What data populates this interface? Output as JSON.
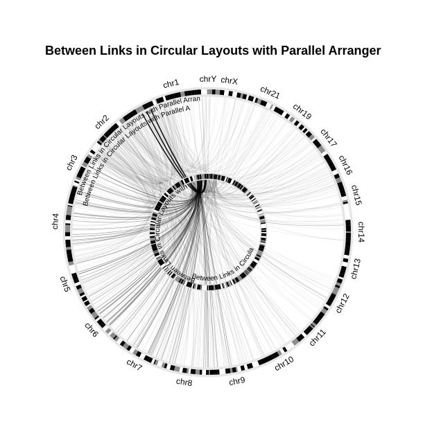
{
  "title": "Between Links in Circular Layouts with Parallel Arranger",
  "chart_data": {
    "type": "circular-links",
    "chromosomes": [
      "chr1",
      "chr2",
      "chr3",
      "chr4",
      "chr5",
      "chr6",
      "chr7",
      "chr8",
      "chr9",
      "chr10",
      "chr11",
      "chr12",
      "chr13",
      "chr14",
      "chr15",
      "chr16",
      "chr17",
      "chr19",
      "chr21",
      "chrX",
      "chrY"
    ],
    "outer_track_labels": [
      "Between Links in Circular Layouts with Parallel Arrangements",
      "Between Links in Circular Layouts with Parallel Arrangements"
    ],
    "inner_track_labels": [
      "Between Links in Circular Layouts with Parallel Arrangements",
      "Between Links in Circular Layouts with Parallel Arrangements"
    ],
    "links_source": "chr1",
    "colors": {
      "link": "#000000",
      "band_dark": "#000000",
      "band_light": "#bdbdbd"
    }
  }
}
